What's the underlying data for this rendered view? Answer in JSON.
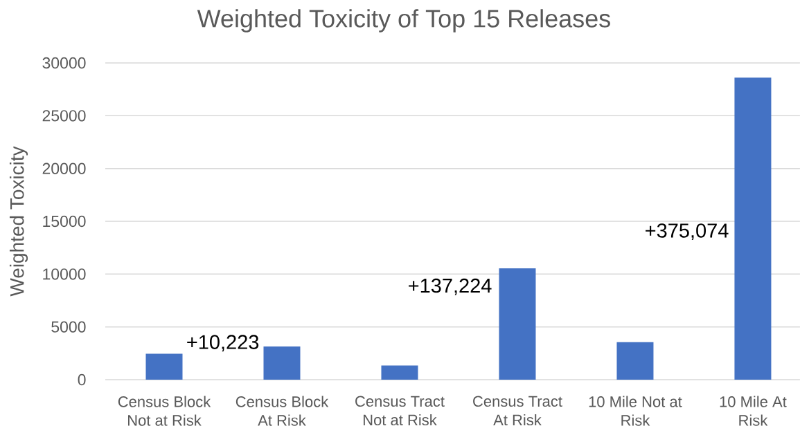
{
  "chart_data": {
    "type": "bar",
    "title": "Weighted Toxicity of Top 15 Releases",
    "ylabel": "Weighted Toxicity",
    "categories": [
      "Census Block Not at Risk",
      "Census Block At Risk",
      "Census Tract Not at Risk",
      "Census Tract At Risk",
      "10 Mile Not at Risk",
      "10 Mile At Risk"
    ],
    "values": [
      2450,
      3150,
      1350,
      10550,
      3550,
      28600
    ],
    "color": "#4472c4",
    "ylim": [
      0,
      30000
    ],
    "yticks": [
      0,
      5000,
      10000,
      15000,
      20000,
      25000,
      30000
    ],
    "grid": "y",
    "annotations": [
      "+10,223",
      "+137,224",
      "+375,074"
    ]
  }
}
